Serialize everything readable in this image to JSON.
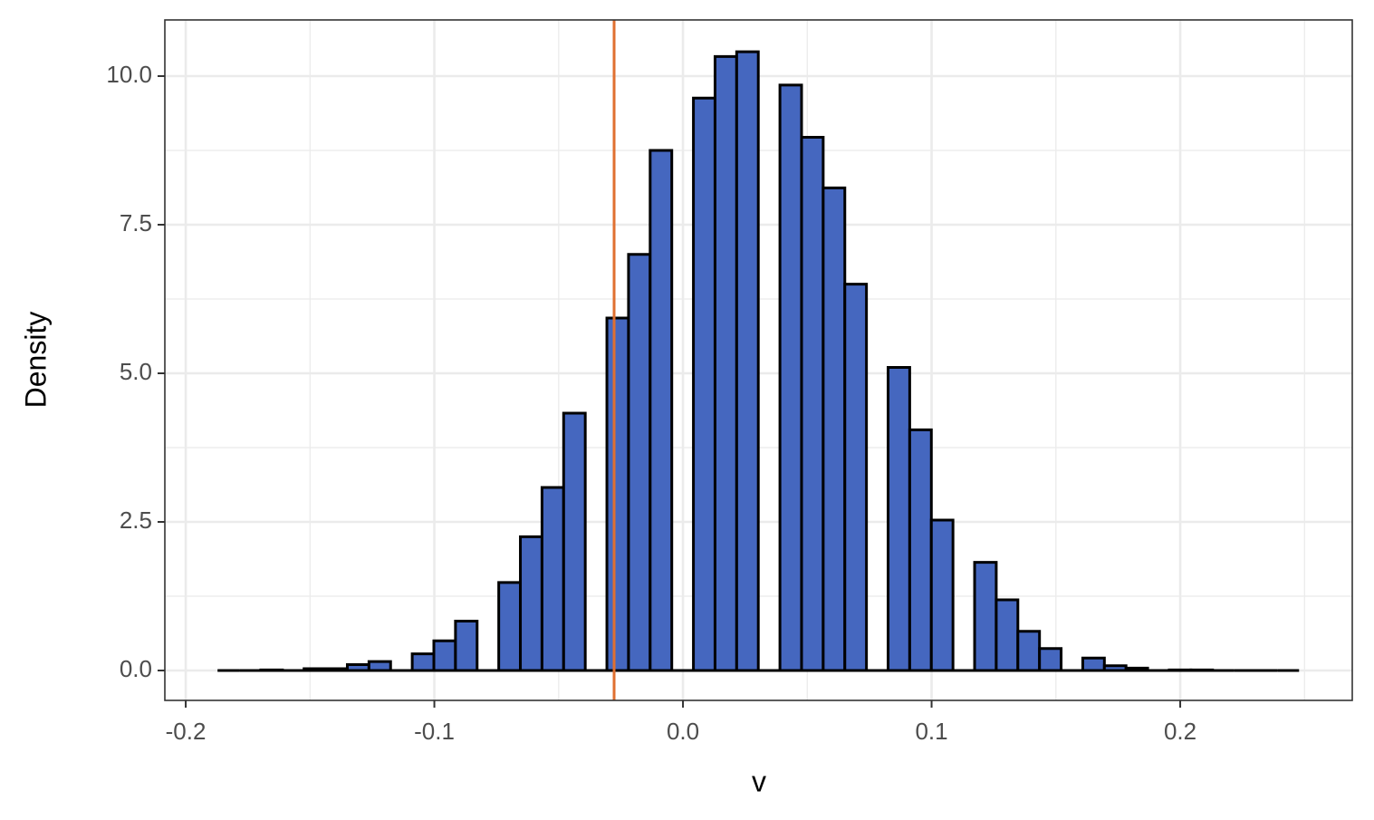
{
  "chart_data": {
    "type": "histogram",
    "xlabel": "v",
    "ylabel": "Density",
    "bins": [
      -0.1872,
      -0.1785,
      -0.1698,
      -0.1611,
      -0.1524,
      -0.1437,
      -0.135,
      -0.1263,
      -0.1176,
      -0.1089,
      -0.1002,
      -0.0915,
      -0.0828,
      -0.0741,
      -0.0654,
      -0.0567,
      -0.048,
      -0.0393,
      -0.0306,
      -0.0219,
      -0.0132,
      -0.0045,
      0.0042,
      0.0129,
      0.0216,
      0.0303,
      0.039,
      0.0477,
      0.0564,
      0.0651,
      0.0738,
      0.0825,
      0.0912,
      0.0999,
      0.1086,
      0.1173,
      0.126,
      0.1347,
      0.1434,
      0.1521,
      0.1608,
      0.1695,
      0.1782,
      0.1869,
      0.1956,
      0.2043,
      0.213,
      0.2217,
      0.2304,
      0.2391,
      0.2478
    ],
    "values": [
      0,
      0,
      0.01,
      0,
      0.03,
      0.03,
      0.1,
      0.15,
      0,
      0.28,
      0.5,
      0.83,
      0,
      1.48,
      2.25,
      3.08,
      4.33,
      0,
      5.93,
      7.0,
      8.75,
      0,
      9.63,
      10.33,
      10.41,
      0,
      9.85,
      8.97,
      8.12,
      6.5,
      0,
      5.1,
      4.05,
      2.53,
      0,
      1.82,
      1.19,
      0.66,
      0.37,
      0,
      0.21,
      0.08,
      0.04,
      0,
      0.01,
      0.01,
      0,
      0,
      0,
      0
    ],
    "color": "#4567bf",
    "edgecolor": "#000000",
    "vline": {
      "value": -0.0277,
      "color": "#e07030"
    },
    "xlim": [
      -0.2084,
      0.2692
    ],
    "ylim": [
      -0.503,
      10.945
    ],
    "xticks": [
      -0.2,
      -0.1,
      {
        "value": 0,
        "label": "0.0"
      },
      0.1,
      0.2
    ],
    "yticks": [
      {
        "value": 0,
        "label": "0.0"
      },
      2.5,
      {
        "value": 5,
        "label": "5.0"
      },
      7.5,
      {
        "value": 10,
        "label": "10.0"
      }
    ],
    "x_minor_grid": [
      -0.15,
      -0.05,
      0.05,
      0.15,
      0.25
    ],
    "y_minor_grid": [
      1.25,
      3.75,
      6.25,
      8.75
    ],
    "grid": true
  }
}
